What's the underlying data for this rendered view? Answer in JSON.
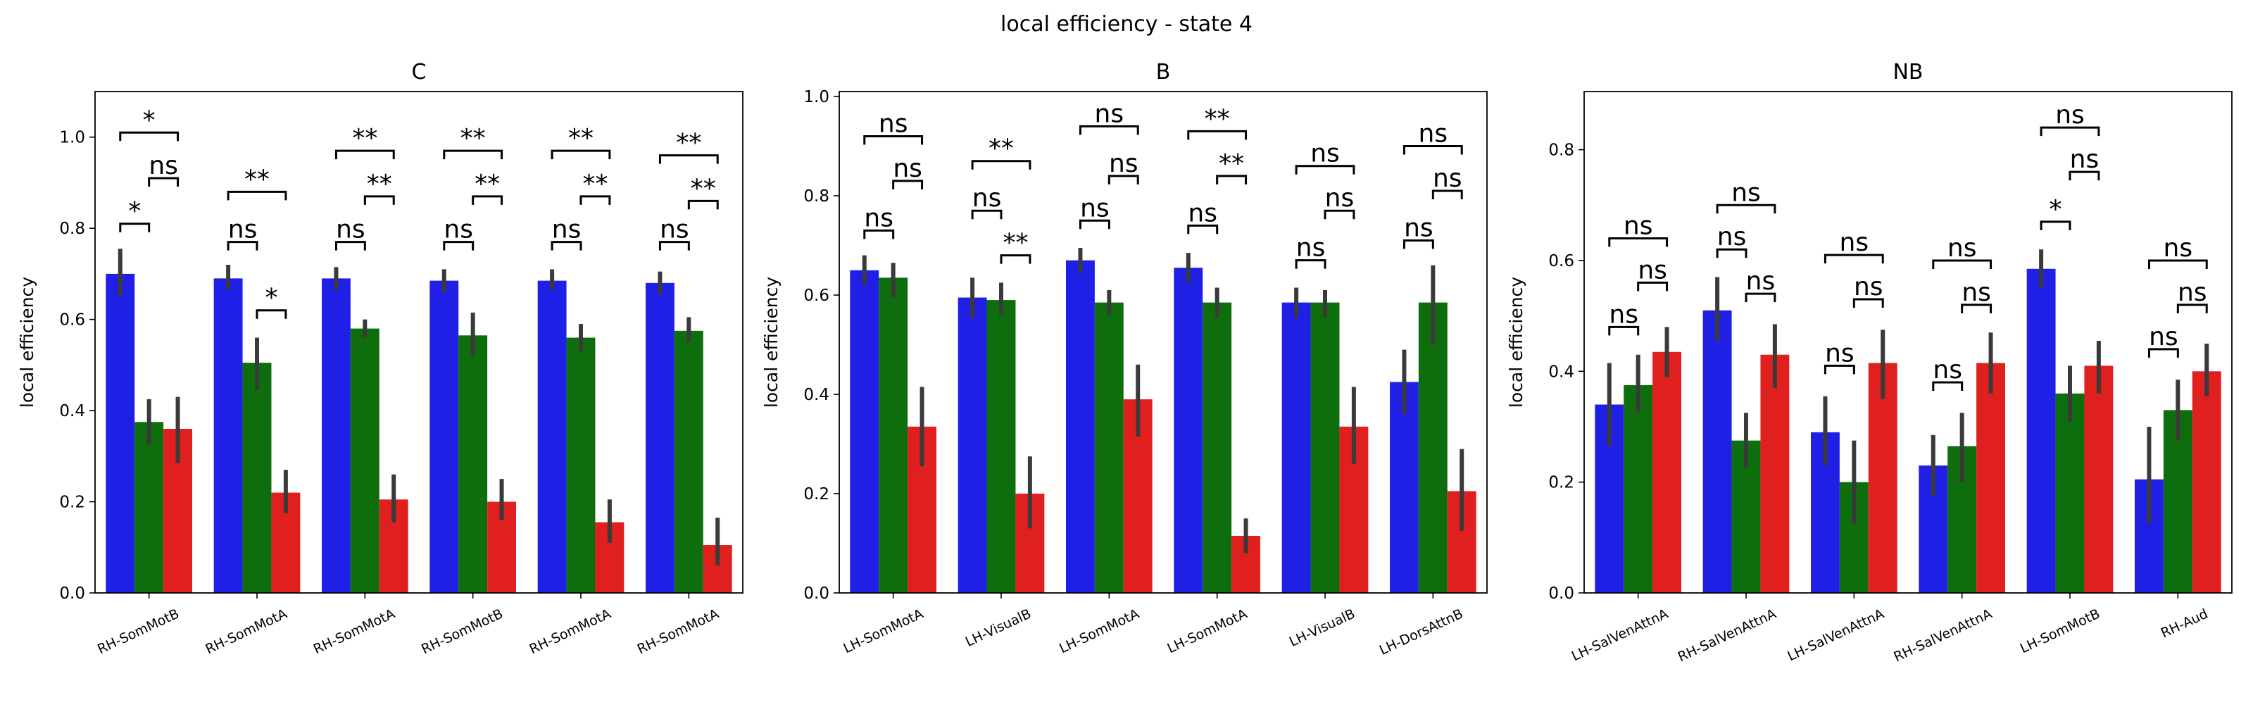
{
  "figure": {
    "suptitle": "local efficiency - state 4",
    "colors": {
      "series_1": "#1f1fe6",
      "series_2": "#0e6e0e",
      "series_3": "#e01f1f",
      "error_bar": "#3a3a3a"
    }
  },
  "chart_data": [
    {
      "type": "bar",
      "title": "C",
      "xlabel": "",
      "ylabel": "local efficiency",
      "ylim": [
        0,
        1.1
      ],
      "yticks": [
        "0.0",
        "0.2",
        "0.4",
        "0.6",
        "0.8",
        "1.0"
      ],
      "categories": [
        "RH-SomMotB",
        "RH-SomMotA",
        "RH-SomMotA",
        "RH-SomMotB",
        "RH-SomMotA",
        "RH-SomMotA"
      ],
      "series": [
        {
          "values": [
            0.7,
            0.69,
            0.69,
            0.685,
            0.685,
            0.68
          ],
          "err_low": [
            0.65,
            0.665,
            0.665,
            0.66,
            0.665,
            0.655
          ],
          "err_high": [
            0.755,
            0.72,
            0.715,
            0.71,
            0.71,
            0.705
          ]
        },
        {
          "values": [
            0.375,
            0.505,
            0.58,
            0.565,
            0.56,
            0.575
          ],
          "err_low": [
            0.325,
            0.445,
            0.56,
            0.52,
            0.53,
            0.55
          ],
          "err_high": [
            0.425,
            0.56,
            0.6,
            0.615,
            0.59,
            0.605
          ]
        },
        {
          "values": [
            0.36,
            0.22,
            0.205,
            0.2,
            0.155,
            0.105
          ],
          "err_low": [
            0.285,
            0.175,
            0.155,
            0.16,
            0.11,
            0.06
          ],
          "err_high": [
            0.43,
            0.27,
            0.26,
            0.25,
            0.205,
            0.165
          ]
        }
      ],
      "annotations": [
        {
          "group": 0,
          "pairs": [
            [
              "ns_12",
              "*"
            ],
            [
              "ns_23",
              "ns"
            ],
            [
              "ns_13",
              "*"
            ]
          ]
        }
      ],
      "significance": [
        [
          "*",
          "ns",
          "*"
        ],
        [
          "ns",
          "*",
          "**"
        ],
        [
          "ns",
          "**",
          "**"
        ],
        [
          "ns",
          "**",
          "**"
        ],
        [
          "ns",
          "**",
          "**"
        ],
        [
          "ns",
          "**",
          "**"
        ]
      ],
      "sig_heights": [
        [
          0.81,
          0.91,
          1.01
        ],
        [
          0.77,
          0.62,
          0.88
        ],
        [
          0.77,
          0.87,
          0.97
        ],
        [
          0.77,
          0.87,
          0.97
        ],
        [
          0.77,
          0.87,
          0.97
        ],
        [
          0.77,
          0.86,
          0.96
        ]
      ]
    },
    {
      "type": "bar",
      "title": "B",
      "xlabel": "",
      "ylabel": "local efficiency",
      "ylim": [
        0,
        1.01
      ],
      "yticks": [
        "0.0",
        "0.2",
        "0.4",
        "0.6",
        "0.8",
        "1.0"
      ],
      "categories": [
        "LH-SomMotA",
        "LH-VisualB",
        "LH-SomMotA",
        "LH-SomMotA",
        "LH-VisualB",
        "LH-DorsAttnB"
      ],
      "series": [
        {
          "values": [
            0.65,
            0.595,
            0.67,
            0.655,
            0.585,
            0.425
          ],
          "err_low": [
            0.62,
            0.555,
            0.645,
            0.625,
            0.555,
            0.36
          ],
          "err_high": [
            0.68,
            0.635,
            0.695,
            0.685,
            0.615,
            0.49
          ]
        },
        {
          "values": [
            0.635,
            0.59,
            0.585,
            0.585,
            0.585,
            0.585
          ],
          "err_low": [
            0.595,
            0.56,
            0.56,
            0.555,
            0.555,
            0.5
          ],
          "err_high": [
            0.665,
            0.625,
            0.61,
            0.615,
            0.61,
            0.66
          ]
        },
        {
          "values": [
            0.335,
            0.2,
            0.39,
            0.115,
            0.335,
            0.205
          ],
          "err_low": [
            0.255,
            0.13,
            0.315,
            0.08,
            0.26,
            0.125
          ],
          "err_high": [
            0.415,
            0.275,
            0.46,
            0.15,
            0.415,
            0.29
          ]
        }
      ],
      "significance": [
        [
          "ns",
          "ns",
          "ns"
        ],
        [
          "ns",
          "**",
          "**"
        ],
        [
          "ns",
          "ns",
          "ns"
        ],
        [
          "ns",
          "**",
          "**"
        ],
        [
          "ns",
          "ns",
          "ns"
        ],
        [
          "ns",
          "ns",
          "ns"
        ]
      ],
      "sig_heights": [
        [
          0.73,
          0.83,
          0.92
        ],
        [
          0.77,
          0.68,
          0.87
        ],
        [
          0.75,
          0.84,
          0.94
        ],
        [
          0.74,
          0.84,
          0.93
        ],
        [
          0.67,
          0.77,
          0.86
        ],
        [
          0.71,
          0.81,
          0.9
        ]
      ]
    },
    {
      "type": "bar",
      "title": "NB",
      "xlabel": "",
      "ylabel": "local efficiency",
      "ylim": [
        0,
        0.905
      ],
      "yticks": [
        "0.0",
        "0.2",
        "0.4",
        "0.6",
        "0.8"
      ],
      "categories": [
        "LH-SalVenAttnA",
        "RH-SalVenAttnA",
        "LH-SalVenAttnA",
        "RH-SalVenAttnA",
        "LH-SomMotB",
        "RH-Aud"
      ],
      "series": [
        {
          "values": [
            0.34,
            0.51,
            0.29,
            0.23,
            0.585,
            0.205
          ],
          "err_low": [
            0.265,
            0.455,
            0.23,
            0.175,
            0.55,
            0.125
          ],
          "err_high": [
            0.415,
            0.57,
            0.355,
            0.285,
            0.62,
            0.3
          ]
        },
        {
          "values": [
            0.375,
            0.275,
            0.2,
            0.265,
            0.36,
            0.33
          ],
          "err_low": [
            0.325,
            0.225,
            0.125,
            0.2,
            0.31,
            0.275
          ],
          "err_high": [
            0.43,
            0.325,
            0.275,
            0.325,
            0.41,
            0.385
          ]
        },
        {
          "values": [
            0.435,
            0.43,
            0.415,
            0.415,
            0.41,
            0.4
          ],
          "err_low": [
            0.39,
            0.37,
            0.35,
            0.36,
            0.36,
            0.355
          ],
          "err_high": [
            0.48,
            0.485,
            0.475,
            0.47,
            0.455,
            0.45
          ]
        }
      ],
      "significance": [
        [
          "ns",
          "ns",
          "ns"
        ],
        [
          "ns",
          "ns",
          "ns"
        ],
        [
          "ns",
          "ns",
          "ns"
        ],
        [
          "ns",
          "ns",
          "ns"
        ],
        [
          "*",
          "ns",
          "ns"
        ],
        [
          "ns",
          "ns",
          "ns"
        ]
      ],
      "sig_heights": [
        [
          0.48,
          0.56,
          0.64
        ],
        [
          0.62,
          0.54,
          0.7
        ],
        [
          0.41,
          0.53,
          0.61
        ],
        [
          0.38,
          0.52,
          0.6
        ],
        [
          0.67,
          0.76,
          0.84
        ],
        [
          0.44,
          0.52,
          0.6
        ]
      ]
    }
  ]
}
